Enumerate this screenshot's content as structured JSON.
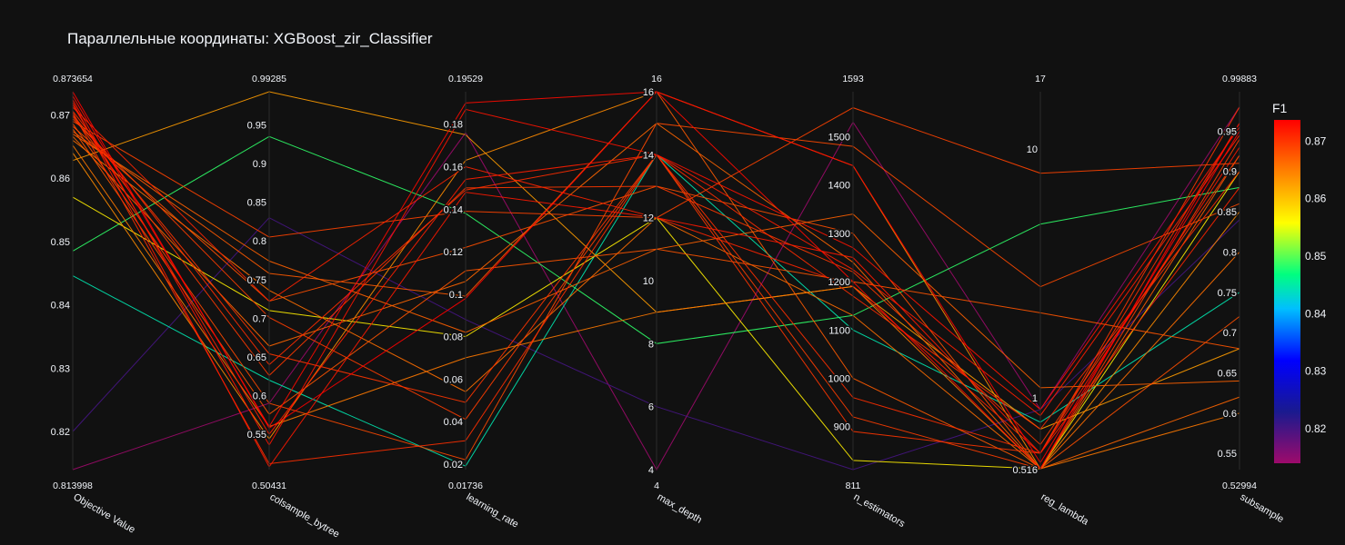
{
  "chart_data": {
    "type": "parallel_coordinates",
    "title": "Параллельные координаты: XGBoost_zir_Classifier",
    "color_variable": "F1",
    "colorscale": [
      [
        0.0,
        "#9e0a6b"
      ],
      [
        0.15,
        "#1a1a8f"
      ],
      [
        0.3,
        "#0000ff"
      ],
      [
        0.45,
        "#00bfff"
      ],
      [
        0.55,
        "#00ff80"
      ],
      [
        0.7,
        "#ffff00"
      ],
      [
        0.85,
        "#ff8000"
      ],
      [
        1.0,
        "#ff0000"
      ]
    ],
    "color_range": [
      0.814,
      0.8737
    ],
    "colorbar_ticks": [
      0.82,
      0.83,
      0.84,
      0.85,
      0.86,
      0.87
    ],
    "dimensions": [
      {
        "label": "Objective Value",
        "min": 0.813998,
        "max": 0.873654,
        "min_label": "0.813998",
        "max_label": "0.873654",
        "ticks": [
          0.82,
          0.83,
          0.84,
          0.85,
          0.86,
          0.87
        ],
        "tick_labels": [
          "0.82",
          "0.83",
          "0.84",
          "0.85",
          "0.86",
          "0.87"
        ]
      },
      {
        "label": "colsample_bytree",
        "min": 0.50431,
        "max": 0.99285,
        "min_label": "0.50431",
        "max_label": "0.99285",
        "ticks": [
          0.55,
          0.6,
          0.65,
          0.7,
          0.75,
          0.8,
          0.85,
          0.9,
          0.95
        ],
        "tick_labels": [
          "0.55",
          "0.6",
          "0.65",
          "0.7",
          "0.75",
          "0.8",
          "0.85",
          "0.9",
          "0.95"
        ]
      },
      {
        "label": "learning_rate",
        "min": 0.01736,
        "max": 0.19529,
        "min_label": "0.01736",
        "max_label": "0.19529",
        "ticks": [
          0.02,
          0.04,
          0.06,
          0.08,
          0.1,
          0.12,
          0.14,
          0.16,
          0.18
        ],
        "tick_labels": [
          "0.02",
          "0.04",
          "0.06",
          "0.08",
          "0.1",
          "0.12",
          "0.14",
          "0.16",
          "0.18"
        ]
      },
      {
        "label": "max_depth",
        "min": 4,
        "max": 16,
        "min_label": "4",
        "max_label": "16",
        "ticks": [
          4,
          6,
          8,
          10,
          12,
          14,
          16
        ],
        "tick_labels": [
          "4",
          "6",
          "8",
          "10",
          "12",
          "14",
          "16"
        ]
      },
      {
        "label": "n_estimators",
        "min": 811,
        "max": 1593,
        "min_label": "811",
        "max_label": "1593",
        "ticks": [
          900,
          1000,
          1100,
          1200,
          1300,
          1400,
          1500
        ],
        "tick_labels": [
          "900",
          "1000",
          "1100",
          "1200",
          "1300",
          "1400",
          "1500"
        ]
      },
      {
        "label": "reg_lambda",
        "min": 0.516,
        "max": 17,
        "min_label": "",
        "max_label": "17",
        "scale": "log",
        "ticks": [
          0.516,
          1,
          10
        ],
        "tick_labels": [
          "0.516",
          "1",
          "10"
        ]
      },
      {
        "label": "subsample",
        "min": 0.52994,
        "max": 0.99883,
        "min_label": "0.52994",
        "max_label": "0.99883",
        "ticks": [
          0.55,
          0.6,
          0.65,
          0.7,
          0.75,
          0.8,
          0.85,
          0.9,
          0.95
        ],
        "tick_labels": [
          "0.55",
          "0.6",
          "0.65",
          "0.7",
          "0.75",
          "0.8",
          "0.85",
          "0.9",
          "0.95"
        ]
      }
    ],
    "trials": [
      [
        0.8737,
        0.558,
        0.098,
        16,
        1440,
        0.55,
        0.95
      ],
      [
        0.873,
        0.56,
        0.19,
        16,
        1200,
        0.52,
        0.96
      ],
      [
        0.8724,
        0.536,
        0.187,
        14,
        1270,
        0.9,
        0.955
      ],
      [
        0.872,
        0.508,
        0.148,
        12,
        1250,
        0.6,
        0.93
      ],
      [
        0.8716,
        0.55,
        0.154,
        14,
        1225,
        0.85,
        0.945
      ],
      [
        0.8712,
        0.722,
        0.16,
        12,
        1190,
        0.6,
        0.88
      ],
      [
        0.8706,
        0.64,
        0.149,
        14,
        1170,
        0.75,
        0.9
      ],
      [
        0.8704,
        0.512,
        0.031,
        14,
        960,
        0.6,
        0.96
      ],
      [
        0.87,
        0.654,
        0.049,
        14,
        890,
        0.6,
        0.98
      ],
      [
        0.8698,
        0.626,
        0.15,
        13,
        1220,
        0.65,
        0.92
      ],
      [
        0.8694,
        0.701,
        0.041,
        14,
        920,
        0.52,
        0.94
      ],
      [
        0.869,
        0.805,
        0.139,
        12,
        1560,
        8.0,
        0.91
      ],
      [
        0.8686,
        0.59,
        0.022,
        15,
        1480,
        2.8,
        0.86
      ],
      [
        0.8682,
        0.722,
        0.122,
        13,
        1300,
        0.52,
        0.72
      ],
      [
        0.8678,
        0.576,
        0.111,
        11,
        1200,
        2.2,
        0.68
      ],
      [
        0.8674,
        0.758,
        0.099,
        16,
        1000,
        0.52,
        0.92
      ],
      [
        0.867,
        0.774,
        0.082,
        11,
        1340,
        1.1,
        0.64
      ],
      [
        0.8666,
        0.664,
        0.106,
        15,
        1240,
        0.52,
        0.62
      ],
      [
        0.866,
        0.736,
        0.054,
        12,
        1130,
        0.52,
        0.8
      ],
      [
        0.8652,
        0.56,
        0.07,
        9,
        1190,
        0.52,
        0.6
      ],
      [
        0.864,
        0.544,
        0.163,
        16,
        1440,
        0.52,
        0.85
      ],
      [
        0.8628,
        0.993,
        0.175,
        9,
        1190,
        0.75,
        0.68
      ],
      [
        0.857,
        0.71,
        0.08,
        12,
        830,
        0.52,
        0.9
      ],
      [
        0.8485,
        0.935,
        0.138,
        8,
        1130,
        5.0,
        0.88
      ],
      [
        0.8446,
        0.62,
        0.019,
        14,
        1100,
        0.8,
        0.75
      ],
      [
        0.82,
        0.83,
        0.088,
        6,
        811,
        0.9,
        0.84
      ],
      [
        0.814,
        0.59,
        0.176,
        4,
        1530,
        0.9,
        0.98
      ]
    ]
  }
}
